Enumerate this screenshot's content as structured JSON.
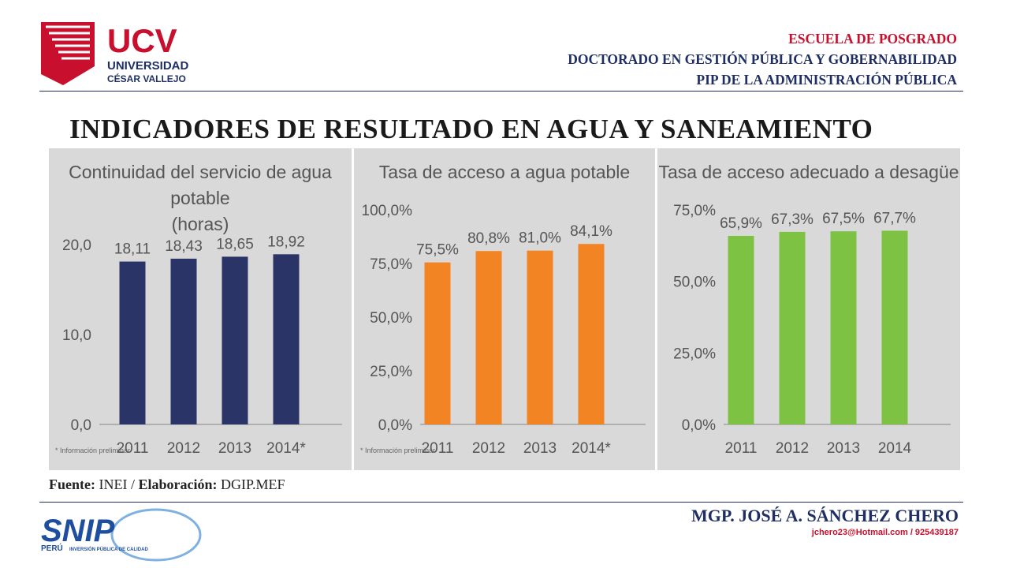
{
  "header": {
    "logo": {
      "name": "UCV",
      "line1": "UNIVERSIDAD",
      "line2": "CÉSAR VALLEJO"
    },
    "line1": "ESCUELA DE POSGRADO",
    "line2": "DOCTORADO EN GESTIÓN PÚBLICA Y GOBERNABILIDAD",
    "line3": "PIP DE LA ADMINISTRACIÓN PÚBLICA"
  },
  "title": "INDICADORES DE RESULTADO EN AGUA Y SANEAMIENTO",
  "chart_data": [
    {
      "type": "bar",
      "title": "Continuidad del servicio de agua potable (horas)",
      "title_lines": [
        "Continuidad del servicio de agua potable",
        "(horas)"
      ],
      "categories": [
        "2011",
        "2012",
        "2013",
        "2014*"
      ],
      "values": [
        18.11,
        18.43,
        18.65,
        18.92
      ],
      "data_labels": [
        "18,11",
        "18,43",
        "18,65",
        "18,92"
      ],
      "yticks": [
        "0,0",
        "10,0",
        "20,0"
      ],
      "note": "* Información preliminar",
      "color": "#2b3466",
      "grid": false
    },
    {
      "type": "bar",
      "title": "Tasa de acceso a agua potable",
      "title_lines": [
        "Tasa de acceso a agua potable"
      ],
      "categories": [
        "2011",
        "2012",
        "2013",
        "2014*"
      ],
      "values": [
        75.5,
        80.8,
        81.0,
        84.1
      ],
      "data_labels": [
        "75,5%",
        "80,8%",
        "81,0%",
        "84,1%"
      ],
      "yticks": [
        "0,0%",
        "25,0%",
        "50,0%",
        "75,0%",
        "100,0%"
      ],
      "note": "* Información preliminar",
      "color": "#f28424",
      "grid": false
    },
    {
      "type": "bar",
      "title": "Tasa de acceso adecuado a desagüe",
      "title_lines": [
        "Tasa de acceso adecuado a desagüe"
      ],
      "categories": [
        "2011",
        "2012",
        "2013",
        "2014"
      ],
      "values": [
        65.9,
        67.3,
        67.5,
        67.7
      ],
      "data_labels": [
        "65,9%",
        "67,3%",
        "67,5%",
        "67,7%"
      ],
      "yticks": [
        "0,0%",
        "25,0%",
        "50,0%",
        "75,0%"
      ],
      "note": "",
      "color": "#7dc242",
      "grid": false
    }
  ],
  "source": {
    "label1": "Fuente:",
    "value1": "INEI",
    "sep": "/",
    "label2": "Elaboración:",
    "value2": "DGIP.MEF"
  },
  "footer": {
    "logo": {
      "name": "SNIP",
      "country": "PERÚ",
      "tagline": "INVERSIÓN PÚBLICA DE CALIDAD"
    },
    "author": "MGP. JOSÉ A. SÁNCHEZ CHERO",
    "contact": "jchero23@Hotmail.com / 925439187"
  },
  "colors": {
    "brand_red": "#c8102e",
    "brand_navy": "#1f2f66"
  }
}
